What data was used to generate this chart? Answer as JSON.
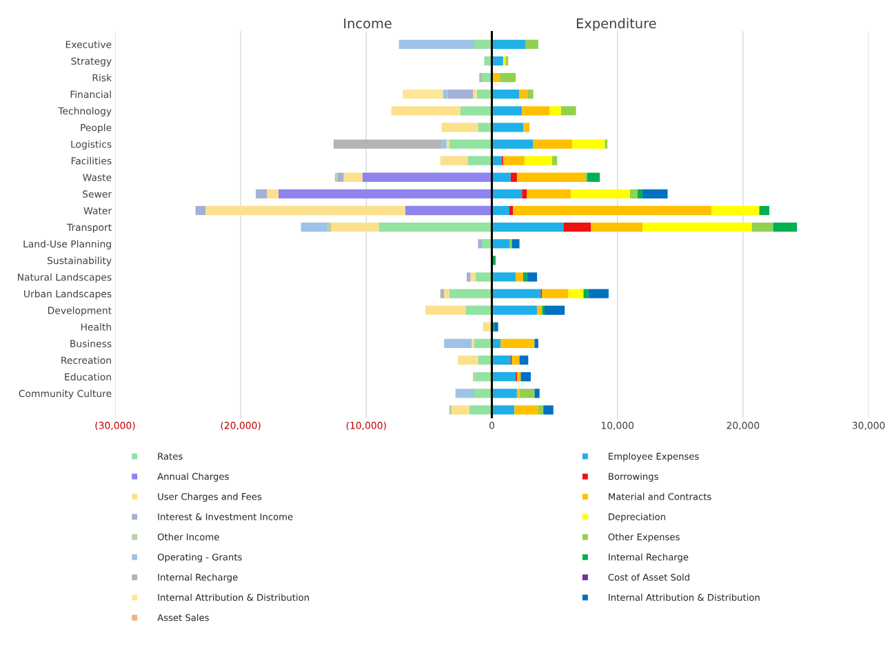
{
  "chart_data": {
    "type": "bar",
    "orientation": "horizontal",
    "stacked": true,
    "categories": [
      "Executive",
      "Strategy",
      "Risk",
      "Financial",
      "Technology",
      "People",
      "Logistics",
      "Facilities",
      "Waste",
      "Sewer",
      "Water",
      "Transport",
      "Land-Use Planning",
      "Sustainability",
      "Natural Landscapes",
      "Urban Landscapes",
      "Development",
      "Health",
      "Business",
      "Recreation",
      "Education",
      "Community Culture",
      null
    ],
    "annotations": [
      "Income",
      "Expenditure"
    ],
    "xlim": [
      -30000,
      30000
    ],
    "xticks": [
      {
        "value": -30000,
        "label": "(30,000)"
      },
      {
        "value": -20000,
        "label": "(20,000)"
      },
      {
        "value": -10000,
        "label": "(10,000)"
      },
      0,
      {
        "value": 10000,
        "label": "10,000"
      },
      {
        "value": 20000,
        "label": "20,000"
      },
      {
        "value": 30000,
        "label": "30,000"
      }
    ],
    "grid": "x",
    "legend": "bottom",
    "ref_lines": [
      {
        "axis": "x",
        "value": 0,
        "color": "#000000"
      }
    ],
    "series": [
      {
        "name": "Rates",
        "color": "#92e2a2",
        "values": [
          -1400,
          -600,
          -800,
          -1200,
          -2500,
          -1100,
          -3400,
          -1900,
          null,
          null,
          null,
          -9000,
          -800,
          null,
          -1300,
          -3400,
          -2100,
          null,
          -1400,
          -1100,
          -1300,
          -1400,
          -1800
        ]
      },
      {
        "name": "Annual Charges",
        "color": "#8f84ee",
        "values": [
          null,
          null,
          null,
          null,
          null,
          null,
          null,
          null,
          -10300,
          -17000,
          -6900,
          null,
          null,
          null,
          null,
          null,
          null,
          null,
          null,
          null,
          null,
          null,
          null
        ]
      },
      {
        "name": "User Charges and Fees",
        "color": "#fde08b",
        "values": [
          null,
          null,
          null,
          -300,
          -5500,
          -2900,
          -200,
          -2200,
          -1500,
          -900,
          -15900,
          -3800,
          null,
          null,
          -400,
          -400,
          -3200,
          -700,
          -200,
          -1600,
          null,
          null,
          -1400
        ]
      },
      {
        "name": "Interest & Investment Income",
        "color": "#a3b1d8",
        "values": [
          null,
          null,
          null,
          -2000,
          null,
          null,
          null,
          null,
          -500,
          -900,
          -800,
          null,
          -300,
          null,
          -300,
          null,
          null,
          null,
          null,
          null,
          null,
          null,
          null
        ]
      },
      {
        "name": "Other Income",
        "color": "#b9d29c",
        "values": [
          null,
          null,
          null,
          null,
          null,
          null,
          null,
          null,
          -200,
          null,
          null,
          -300,
          null,
          null,
          null,
          null,
          null,
          null,
          null,
          null,
          -200,
          null,
          -200
        ]
      },
      {
        "name": "Operating - Grants",
        "color": "#9dc3e6",
        "values": [
          -6000,
          null,
          null,
          -400,
          null,
          null,
          -400,
          null,
          null,
          null,
          null,
          -2100,
          null,
          null,
          null,
          null,
          null,
          null,
          -2200,
          null,
          null,
          -1500,
          null
        ]
      },
      {
        "name": "Internal Recharge",
        "color": "#b4b4b4",
        "values": [
          null,
          null,
          -200,
          null,
          null,
          null,
          -8600,
          null,
          null,
          null,
          null,
          null,
          null,
          null,
          null,
          -300,
          null,
          null,
          null,
          null,
          null,
          null,
          null
        ]
      },
      {
        "name": "Internal Attribution & Distribution",
        "color": "#ffe699",
        "values": [
          null,
          null,
          null,
          -3200,
          null,
          null,
          null,
          null,
          null,
          null,
          null,
          null,
          null,
          null,
          null,
          null,
          null,
          null,
          null,
          null,
          null,
          null,
          null
        ]
      },
      {
        "name": "Asset Sales",
        "color": "#f4b183",
        "values": [
          null,
          null,
          null,
          null,
          null,
          null,
          null,
          null,
          null,
          null,
          null,
          null,
          null,
          null,
          null,
          null,
          null,
          null,
          null,
          null,
          null,
          null,
          null
        ]
      },
      {
        "name": "Employee Expenses",
        "color": "#1fb0e8",
        "values": [
          2700,
          900,
          null,
          2200,
          2400,
          2500,
          3300,
          800,
          1500,
          2400,
          1400,
          5700,
          1400,
          null,
          1900,
          3900,
          3600,
          null,
          700,
          1500,
          1900,
          2000,
          1800
        ]
      },
      {
        "name": "Borrowings",
        "color": "#ee1111",
        "values": [
          null,
          null,
          null,
          null,
          null,
          null,
          null,
          100,
          500,
          400,
          300,
          2200,
          null,
          null,
          null,
          100,
          null,
          null,
          null,
          100,
          100,
          null,
          null
        ]
      },
      {
        "name": "Material and Contracts",
        "color": "#ffc000",
        "values": [
          null,
          null,
          600,
          600,
          2200,
          500,
          3100,
          1700,
          5400,
          3500,
          15800,
          4100,
          null,
          null,
          600,
          2100,
          400,
          null,
          2700,
          600,
          300,
          200,
          1900
        ]
      },
      {
        "name": "Depreciation",
        "color": "#ffff00",
        "values": [
          null,
          200,
          null,
          null,
          900,
          null,
          2600,
          2200,
          null,
          4700,
          3800,
          8700,
          null,
          null,
          null,
          1200,
          null,
          null,
          null,
          null,
          null,
          null,
          null
        ]
      },
      {
        "name": "Other Expenses",
        "color": "#92d050",
        "values": [
          1000,
          200,
          1300,
          500,
          1200,
          null,
          200,
          400,
          200,
          600,
          null,
          1700,
          200,
          null,
          null,
          null,
          null,
          null,
          null,
          null,
          null,
          1200,
          400
        ]
      },
      {
        "name": "Internal Recharge",
        "color": "#00b050",
        "values": [
          null,
          null,
          null,
          null,
          null,
          null,
          null,
          null,
          1000,
          400,
          800,
          1900,
          null,
          300,
          300,
          400,
          200,
          200,
          null,
          null,
          null,
          null,
          null
        ]
      },
      {
        "name": "Cost of Asset Sold",
        "color": "#7030a0",
        "values": [
          null,
          null,
          null,
          null,
          null,
          null,
          null,
          null,
          null,
          null,
          null,
          null,
          null,
          null,
          null,
          null,
          null,
          null,
          null,
          null,
          null,
          null,
          null
        ]
      },
      {
        "name": "Internal Attribution & Distribution",
        "color": "#0070c0",
        "values": [
          null,
          null,
          null,
          null,
          null,
          null,
          null,
          null,
          null,
          2000,
          null,
          null,
          600,
          null,
          800,
          1600,
          1600,
          300,
          300,
          700,
          800,
          400,
          800
        ]
      }
    ]
  }
}
